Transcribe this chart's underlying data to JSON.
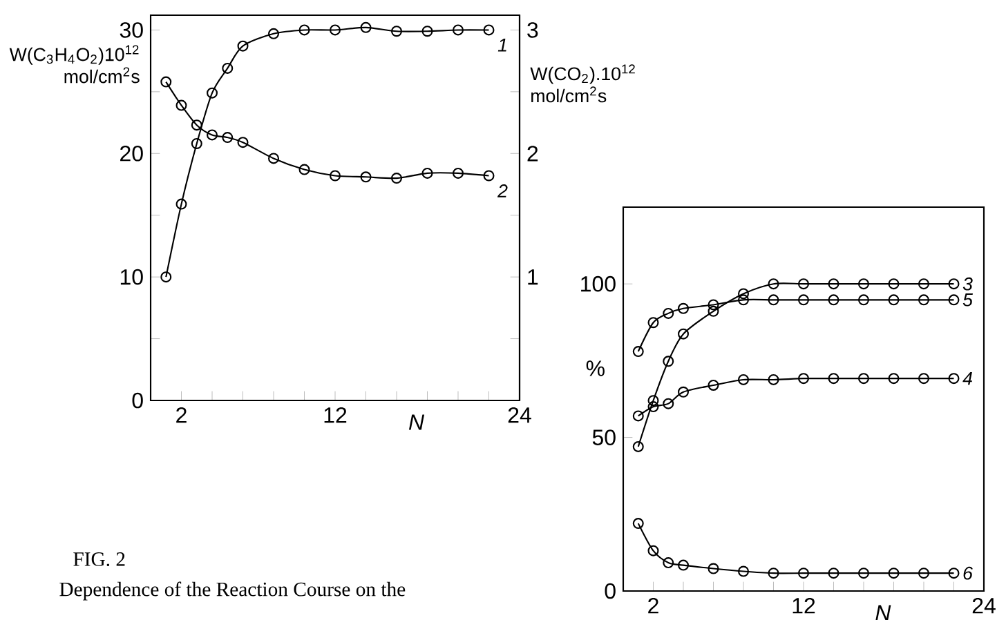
{
  "chart_data": [
    {
      "type": "line",
      "xlabel": "N",
      "ylabel": "W(C$_{3}$H$_{4}$O$_{2}$)10$^{12}$ mol/cm$^{2}$s",
      "y2label": "W(CO$_{2}$).10$^{12}$ mol/cm$^{2}$s",
      "marker": "circle",
      "xlim": [
        0,
        24
      ],
      "xticks": [
        2,
        {
          "value": 4,
          "label": null
        },
        {
          "value": 6,
          "label": null
        },
        {
          "value": 8,
          "label": null
        },
        {
          "value": 10,
          "label": null
        },
        12,
        {
          "value": 14,
          "label": null
        },
        {
          "value": 16,
          "label": null
        },
        {
          "value": 18,
          "label": null
        },
        {
          "value": 20,
          "label": null
        },
        {
          "value": 22,
          "label": null
        },
        24
      ],
      "ylim": [
        0,
        31.2
      ],
      "yticks": [
        0,
        {
          "value": 5,
          "label": null
        },
        10,
        {
          "value": 15,
          "label": null
        },
        20,
        {
          "value": 25,
          "label": null
        },
        30
      ],
      "y2lim": [
        0,
        3.12
      ],
      "y2ticks": [
        {
          "value": 0.5,
          "label": null
        },
        1,
        {
          "value": 1.5,
          "label": null
        },
        2,
        {
          "value": 2.5,
          "label": null
        },
        3
      ],
      "annotations": [
        "FIG. 2",
        "Dependence of the Reaction Course on the"
      ],
      "series": [
        {
          "name": "1",
          "color": "#000000",
          "x": [
            1,
            2,
            3,
            4,
            5,
            6,
            8,
            10,
            12,
            14,
            16,
            18,
            20,
            22
          ],
          "values": [
            10,
            15.9,
            20.8,
            24.9,
            26.9,
            28.7,
            29.7,
            30,
            30,
            30.2,
            29.9,
            29.9,
            30,
            30
          ]
        },
        {
          "name": "2",
          "color": "#000000",
          "axis": "y2",
          "x": [
            1,
            2,
            3,
            4,
            5,
            6,
            8,
            10,
            12,
            14,
            16,
            18,
            20,
            22
          ],
          "values": [
            2.58,
            2.39,
            2.23,
            2.15,
            2.13,
            2.09,
            1.96,
            1.87,
            1.82,
            1.81,
            1.8,
            1.84,
            1.84,
            1.82
          ]
        }
      ]
    },
    {
      "type": "line",
      "xlabel": "N",
      "ylabel": "%",
      "marker": "circle",
      "xlim": [
        0,
        24
      ],
      "xticks": [
        2,
        {
          "value": 4,
          "label": null
        },
        {
          "value": 6,
          "label": null
        },
        {
          "value": 8,
          "label": null
        },
        {
          "value": 10,
          "label": null
        },
        12,
        {
          "value": 14,
          "label": null
        },
        {
          "value": 16,
          "label": null
        },
        {
          "value": 18,
          "label": null
        },
        {
          "value": 20,
          "label": null
        },
        {
          "value": 22,
          "label": null
        },
        24
      ],
      "ylim": [
        0,
        125
      ],
      "yticks": [
        0,
        50,
        100
      ],
      "series": [
        {
          "name": "3",
          "color": "#000000",
          "x": [
            1,
            2,
            3,
            4,
            6,
            8,
            10,
            12,
            14,
            16,
            18,
            20,
            22
          ],
          "values": [
            47,
            62,
            74.8,
            83.7,
            91.1,
            96.8,
            100,
            100,
            100,
            100,
            100,
            100,
            100
          ]
        },
        {
          "name": "5",
          "color": "#000000",
          "x": [
            1,
            2,
            3,
            4,
            6,
            8,
            10,
            12,
            14,
            16,
            18,
            20,
            22
          ],
          "values": [
            78,
            87.4,
            90.4,
            92,
            93.2,
            94.8,
            94.8,
            94.8,
            94.8,
            94.8,
            94.8,
            94.8,
            94.8
          ]
        },
        {
          "name": "4",
          "color": "#000000",
          "x": [
            1,
            2,
            3,
            4,
            6,
            8,
            10,
            12,
            14,
            16,
            18,
            20,
            22
          ],
          "values": [
            57,
            60,
            61,
            64.8,
            67,
            68.8,
            68.8,
            69.2,
            69.2,
            69.2,
            69.2,
            69.2,
            69.2
          ]
        },
        {
          "name": "6",
          "color": "#000000",
          "x": [
            1,
            2,
            3,
            4,
            6,
            8,
            10,
            12,
            14,
            16,
            18,
            20,
            22
          ],
          "values": [
            22,
            13.1,
            9.2,
            8.4,
            7.3,
            6.4,
            5.8,
            5.8,
            5.8,
            5.8,
            5.8,
            5.8,
            5.8
          ]
        }
      ]
    }
  ]
}
